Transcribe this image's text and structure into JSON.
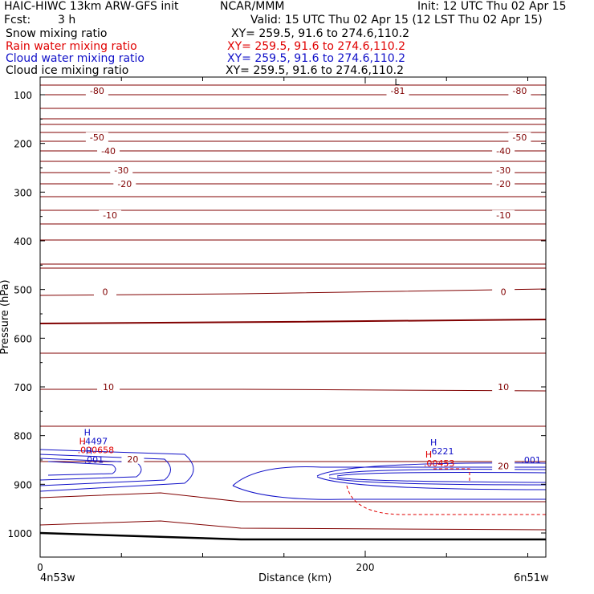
{
  "header": {
    "title_left": "HAIC-HIWC 13km ARW-GFS init",
    "title_center": "NCAR/MMM",
    "init": "Init: 12 UTC Thu 02 Apr 15",
    "fcst_label": "Fcst:",
    "fcst_value": "3 h",
    "valid": "Valid: 15 UTC Thu 02 Apr 15 (12 LST Thu 02 Apr 15)"
  },
  "fields": [
    {
      "name": "Snow mixing ratio",
      "xy": "XY= 259.5, 91.6 to 274.6,110.2",
      "color": "#000000"
    },
    {
      "name": "Rain water mixing ratio",
      "xy": "XY= 259.5, 91.6 to 274.6,110.2",
      "color": "#e00000"
    },
    {
      "name": "Cloud water mixing ratio",
      "xy": "XY= 259.5, 91.6 to 274.6,110.2",
      "color": "#1010c8"
    },
    {
      "name": "Cloud ice mixing ratio",
      "xy": "XY= 259.5, 91.6 to 274.6,110.2",
      "color": "#000000"
    }
  ],
  "colors": {
    "temperature": "#800000",
    "cloud_water": "#1010c8",
    "rain": "#e00000",
    "ground": "#000000"
  },
  "chart_data": {
    "type": "cross-section contour",
    "xlabel": "Distance (km)",
    "ylabel": "Pressure (hPa)",
    "xlim": [
      0,
      310
    ],
    "ylim": [
      1050,
      50
    ],
    "x_ticks": [
      0,
      200
    ],
    "y_ticks": [
      100,
      200,
      300,
      400,
      500,
      600,
      700,
      800,
      900,
      1000
    ],
    "endpoint_labels": {
      "left": "4n53w",
      "right": "6n51w"
    },
    "temperature_contour_labels": [
      {
        "value": "-80",
        "x": 35,
        "p": 92
      },
      {
        "value": "-81",
        "x": 220,
        "p": 92
      },
      {
        "value": "-80",
        "x": 295,
        "p": 92
      },
      {
        "value": "-50",
        "x": 35,
        "p": 187
      },
      {
        "value": "-50",
        "x": 295,
        "p": 187
      },
      {
        "value": "-40",
        "x": 42,
        "p": 215
      },
      {
        "value": "-40",
        "x": 285,
        "p": 215
      },
      {
        "value": "-30",
        "x": 50,
        "p": 255
      },
      {
        "value": "-30",
        "x": 285,
        "p": 255
      },
      {
        "value": "-20",
        "x": 52,
        "p": 283
      },
      {
        "value": "-20",
        "x": 285,
        "p": 283
      },
      {
        "value": "-10",
        "x": 43,
        "p": 347
      },
      {
        "value": "-10",
        "x": 285,
        "p": 347
      },
      {
        "value": "0",
        "x": 40,
        "p": 505
      },
      {
        "value": "0",
        "x": 285,
        "p": 505
      },
      {
        "value": "10",
        "x": 42,
        "p": 700
      },
      {
        "value": "10",
        "x": 285,
        "p": 700
      },
      {
        "value": "20",
        "x": 57,
        "p": 848
      },
      {
        "value": "20",
        "x": 285,
        "p": 862
      }
    ],
    "extrema": [
      {
        "type": "L",
        "value": "",
        "x": 218,
        "p": 80,
        "color": "temperature"
      },
      {
        "type": "H",
        "value": ".4497",
        "x": 27,
        "p": 800,
        "color": "cloud_water"
      },
      {
        "type": "H",
        "value": ".000658",
        "x": 24,
        "p": 818,
        "color": "rain"
      },
      {
        "type": "H",
        "value": ".001",
        "x": 28,
        "p": 838,
        "color": "cloud_water"
      },
      {
        "type": "H",
        "value": ".6221",
        "x": 240,
        "p": 820,
        "color": "cloud_water"
      },
      {
        "type": "H",
        "value": ".00453",
        "x": 237,
        "p": 845,
        "color": "rain"
      },
      {
        "type": "",
        "value": ".001",
        "x": 296,
        "p": 857,
        "color": "cloud_water"
      }
    ]
  }
}
